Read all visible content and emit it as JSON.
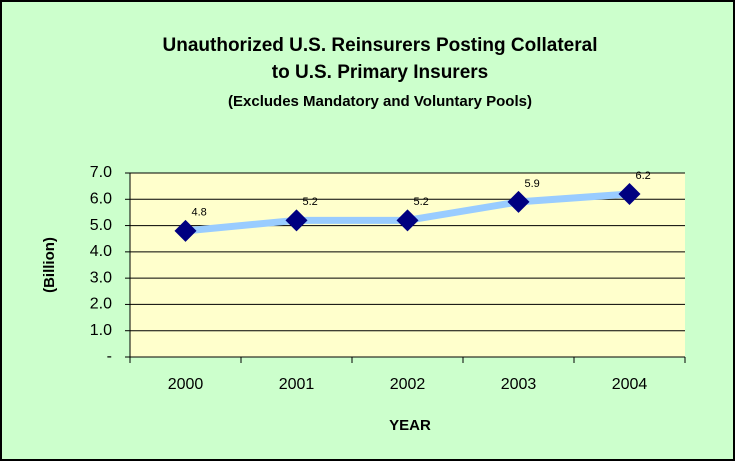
{
  "chart_data": {
    "type": "line",
    "title": [
      "Unauthorized U.S. Reinsurers Posting Collateral",
      "to U.S. Primary Insurers"
    ],
    "subtitle": "(Excludes Mandatory and Voluntary Pools)",
    "x_label": "YEAR",
    "y_label": "(Billion)",
    "categories": [
      "2000",
      "2001",
      "2002",
      "2003",
      "2004"
    ],
    "series": [
      {
        "color": "#99ccff",
        "marker_color": "#000080",
        "values": [
          4.8,
          5.2,
          5.2,
          5.9,
          6.2
        ]
      }
    ],
    "ylim": [
      0,
      7
    ],
    "yticks": [
      {
        "value": 0,
        "label": "-"
      },
      {
        "value": 1,
        "label": "1.0"
      },
      {
        "value": 2,
        "label": "2.0"
      },
      {
        "value": 3,
        "label": "3.0"
      },
      {
        "value": 4,
        "label": "4.0"
      },
      {
        "value": 5,
        "label": "5.0"
      },
      {
        "value": 6,
        "label": "6.0"
      },
      {
        "value": 7,
        "label": "7.0"
      }
    ],
    "grid": true
  }
}
